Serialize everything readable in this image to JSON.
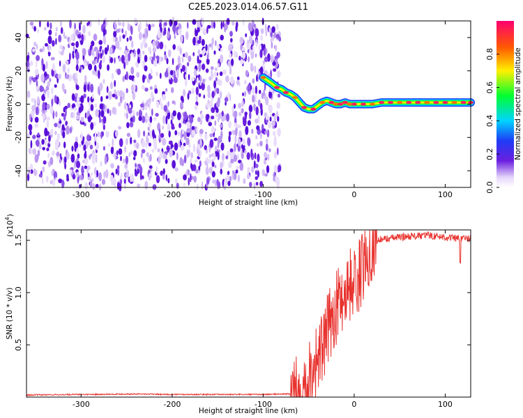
{
  "page_title": "C2E5.2023.014.06.57.G11",
  "chart_data": [
    {
      "type": "heatmap",
      "title": "C2E5.2023.014.06.57.G11",
      "xlabel": "Height of straight line (km)",
      "ylabel": "Frequency (Hz)",
      "xlim": [
        -360,
        128
      ],
      "ylim": [
        -50,
        50
      ],
      "xticks": [
        -300,
        -200,
        -100,
        0,
        100
      ],
      "yticks": [
        -40,
        -20,
        0,
        20,
        40
      ],
      "noise_region_x": [
        -360,
        -80
      ],
      "ridge": {
        "x": [
          -100,
          -92,
          -85,
          -80,
          -75,
          -70,
          -65,
          -60,
          -55,
          -50,
          -45,
          -40,
          -35,
          -30,
          -25,
          -20,
          -15,
          -10,
          -5,
          0,
          10,
          20,
          30,
          40,
          50,
          60,
          70,
          80,
          90,
          100,
          110,
          120,
          128
        ],
        "freq": [
          16,
          13,
          10,
          9,
          7,
          6,
          4,
          1,
          -2,
          -3,
          -3,
          -1,
          1,
          2,
          1,
          0,
          0,
          1,
          0,
          0,
          0,
          0,
          1,
          1,
          1,
          1,
          1,
          1,
          1,
          1,
          1,
          1,
          1
        ]
      },
      "colorbar": {
        "label": "Normalized spectral amplitude",
        "range": [
          0.0,
          1.0
        ],
        "ticks": [
          "0.0",
          "0.2",
          "0.4",
          "0.6",
          "0.8"
        ]
      }
    },
    {
      "type": "line",
      "xlabel": "Height of straight line (km)",
      "ylabel": "SNR (10 * v/v)",
      "multiplier_label": "(x10",
      "multiplier_exponent": "4",
      "xlim": [
        -360,
        128
      ],
      "ylim": [
        0,
        16000
      ],
      "xticks": [
        -300,
        -200,
        -100,
        0,
        100
      ],
      "yticks": [
        0.5,
        1.0,
        1.5
      ],
      "ytick_labels": [
        "0.5",
        "1.0",
        "1.5"
      ],
      "series": [
        {
          "name": "SNR",
          "color": "#e8322e",
          "x": [
            -360,
            -300,
            -240,
            -200,
            -150,
            -100,
            -80,
            -70,
            -60,
            -55,
            -50,
            -45,
            -40,
            -35,
            -30,
            -25,
            -20,
            -15,
            -10,
            -5,
            0,
            5,
            10,
            15,
            20,
            25,
            30,
            40,
            50,
            60,
            70,
            80,
            90,
            100,
            110,
            120,
            128
          ],
          "y": [
            200,
            250,
            300,
            250,
            250,
            250,
            300,
            300,
            500,
            1200,
            2000,
            3000,
            3800,
            4500,
            6000,
            7500,
            8500,
            9500,
            10000,
            10800,
            11000,
            11500,
            12500,
            14000,
            14800,
            15000,
            15100,
            15200,
            15300,
            15400,
            15400,
            15500,
            15400,
            15300,
            15200,
            15200,
            15200
          ]
        }
      ]
    }
  ]
}
